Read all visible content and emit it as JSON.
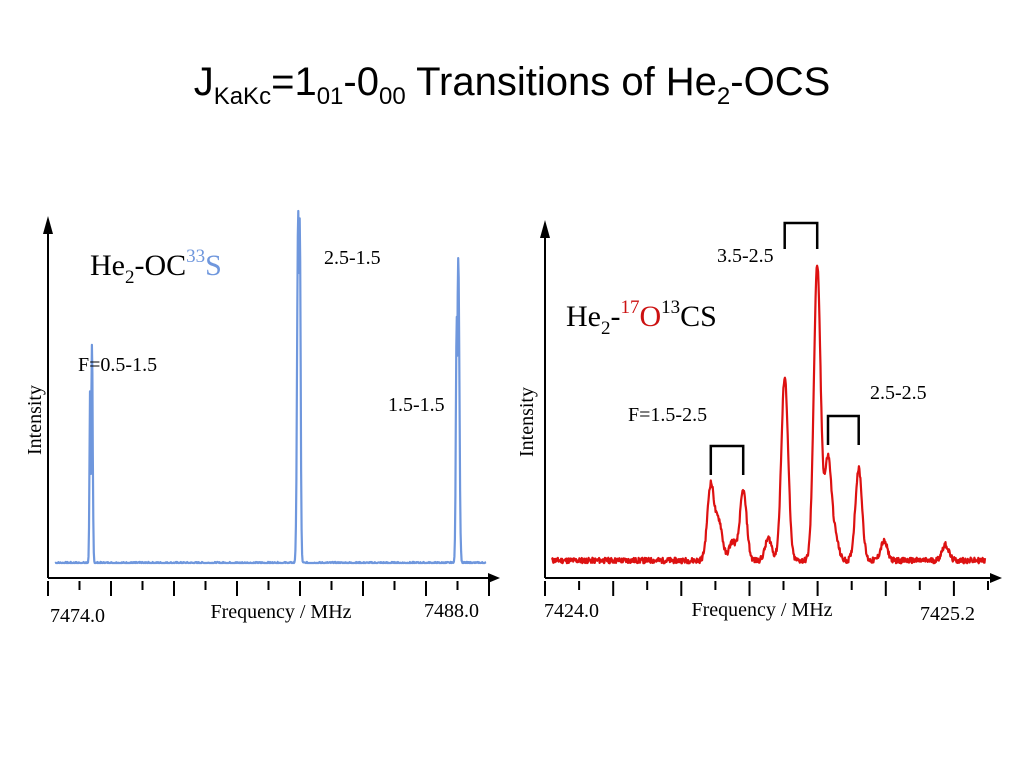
{
  "title": {
    "j": "J",
    "j_sub": "KaKc",
    "eq": "=1",
    "n1_sub": "01",
    "dash": "-0",
    "n2_sub": "00",
    "rest": " Transitions of He",
    "he_sub": "2",
    "ocs": "-OCS"
  },
  "chart_data": [
    {
      "type": "line",
      "species": {
        "he": "He",
        "he_sub": "2",
        "mid": "-OC",
        "iso_sup": "33",
        "iso_el": "S"
      },
      "xlabel": "Frequency / MHz",
      "ylabel": "Intensity",
      "x_tick_labels": [
        "7474.0",
        "7488.0"
      ],
      "xlim": [
        7474.0,
        7488.0
      ],
      "ylim": [
        0,
        1
      ],
      "grid": false,
      "color": "#6f97dd",
      "iso_color": "#6f97dd",
      "baseline": 0.02,
      "peaks": [
        {
          "x": 7475.2,
          "y": 0.62,
          "sub_y": 0.5,
          "sub_offset": -0.06,
          "width": 0.035,
          "label": "F=0.5-1.5"
        },
        {
          "x": 7481.9,
          "y": 1.0,
          "sub_y": 0.98,
          "sub_offset": 0.05,
          "width": 0.05,
          "label": "2.5-1.5"
        },
        {
          "x": 7487.1,
          "y": 0.87,
          "sub_y": 0.7,
          "sub_offset": -0.05,
          "width": 0.05,
          "label": "1.5-1.5"
        }
      ]
    },
    {
      "type": "line",
      "species": {
        "he": "He",
        "he_sub": "2",
        "dash": "-",
        "sup1": "17",
        "el1": "O",
        "sup2": "13",
        "el2": "CS"
      },
      "xlabel": "Frequency / MHz",
      "ylabel": "Intensity",
      "x_tick_labels": [
        "7424.0",
        "7425.2"
      ],
      "xlim": [
        7424.0,
        7425.2
      ],
      "ylim": [
        0,
        1
      ],
      "grid": false,
      "color": "#dd1111",
      "iso_color": "#cc1111",
      "baseline": 0.03,
      "peaks": [
        {
          "x": 7424.44,
          "y": 0.24
        },
        {
          "x": 7424.463,
          "y": 0.12
        },
        {
          "x": 7424.53,
          "y": 0.22
        },
        {
          "x": 7424.645,
          "y": 0.58
        },
        {
          "x": 7424.735,
          "y": 0.93
        },
        {
          "x": 7424.765,
          "y": 0.32
        },
        {
          "x": 7424.85,
          "y": 0.29
        },
        {
          "x": 7424.5,
          "y": 0.06
        },
        {
          "x": 7424.6,
          "y": 0.07
        },
        {
          "x": 7424.785,
          "y": 0.07
        },
        {
          "x": 7424.92,
          "y": 0.06
        },
        {
          "x": 7425.09,
          "y": 0.05
        }
      ],
      "annotations": [
        {
          "label": "F=1.5-2.5",
          "x1": 7424.44,
          "x2": 7424.53
        },
        {
          "label": "3.5-2.5",
          "x1": 7424.645,
          "x2": 7424.735
        },
        {
          "label": "2.5-2.5",
          "x1": 7424.765,
          "x2": 7424.85
        }
      ]
    }
  ]
}
